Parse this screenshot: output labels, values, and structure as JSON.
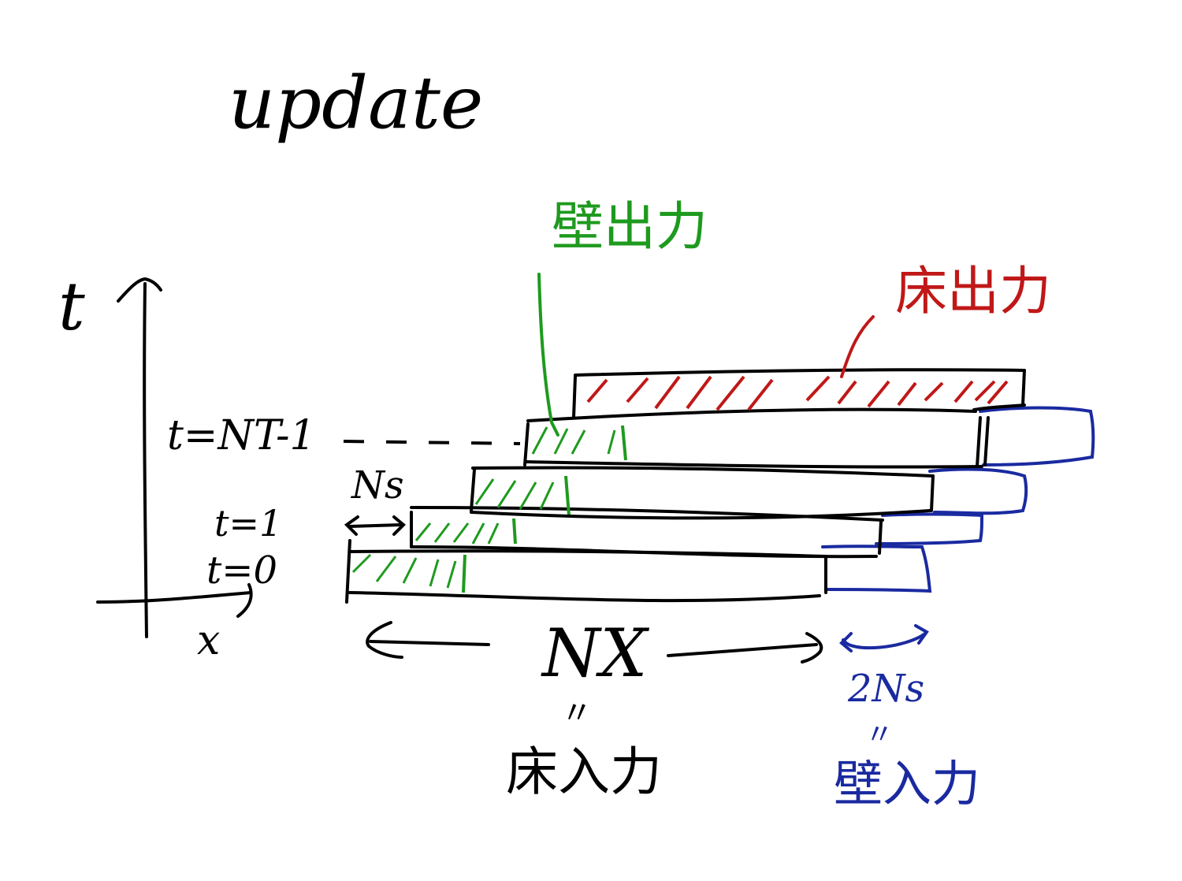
{
  "title": "update",
  "axes": {
    "y_label": "t",
    "x_label": "x",
    "row_labels": {
      "t0": "t=0",
      "t1": "t=1",
      "tlast": "t=NT-1"
    }
  },
  "annotations": {
    "ns": "Ns",
    "nx": "NX",
    "nx_equals": "〃",
    "floor_input": "床入力",
    "wall_output": "壁出力",
    "floor_output": "床出力",
    "two_ns": "2Ns",
    "two_ns_equals": "〃",
    "wall_input": "壁入力"
  },
  "colors": {
    "ink": "#000000",
    "green": "#1e9a1e",
    "red": "#c01818",
    "blue": "#1a2aa0"
  }
}
